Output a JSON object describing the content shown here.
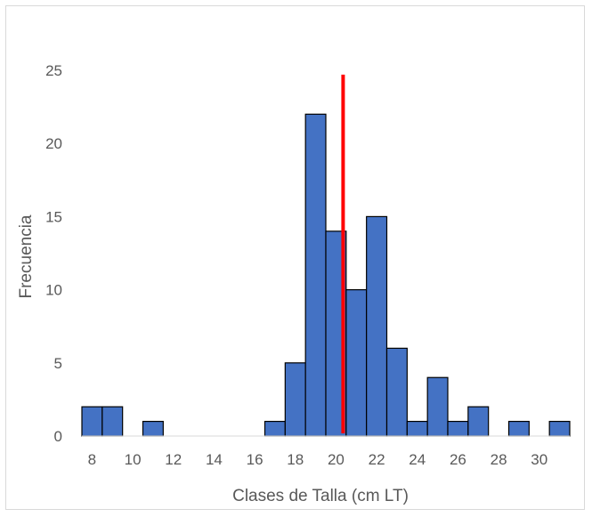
{
  "chart_data": {
    "type": "bar",
    "title": "",
    "xlabel": "Clases de Talla (cm LT)",
    "ylabel": "Frecuencia",
    "ylim": [
      0,
      25
    ],
    "y_ticks": [
      0,
      5,
      10,
      15,
      20,
      25
    ],
    "x_tick_labels": [
      "8",
      "10",
      "12",
      "14",
      "16",
      "18",
      "20",
      "22",
      "24",
      "26",
      "28",
      "30"
    ],
    "x_tick_classes": [
      8,
      10,
      12,
      14,
      16,
      18,
      20,
      22,
      24,
      26,
      28,
      30
    ],
    "class_range": [
      8,
      31
    ],
    "categories": [
      8,
      9,
      10,
      11,
      12,
      13,
      14,
      15,
      16,
      17,
      18,
      19,
      20,
      21,
      22,
      23,
      24,
      25,
      26,
      27,
      28,
      29,
      30,
      31
    ],
    "values": [
      2,
      2,
      0,
      1,
      0,
      0,
      0,
      0,
      0,
      1,
      5,
      22,
      14,
      10,
      15,
      6,
      1,
      4,
      1,
      2,
      0,
      1,
      0,
      1
    ],
    "grid": false,
    "legend": "none",
    "bar_color": "#4472c4",
    "bar_edge_color": "#000000",
    "reference_line": {
      "x": 20.85,
      "y_range": [
        0,
        24.7
      ],
      "color": "#ff0000"
    }
  }
}
